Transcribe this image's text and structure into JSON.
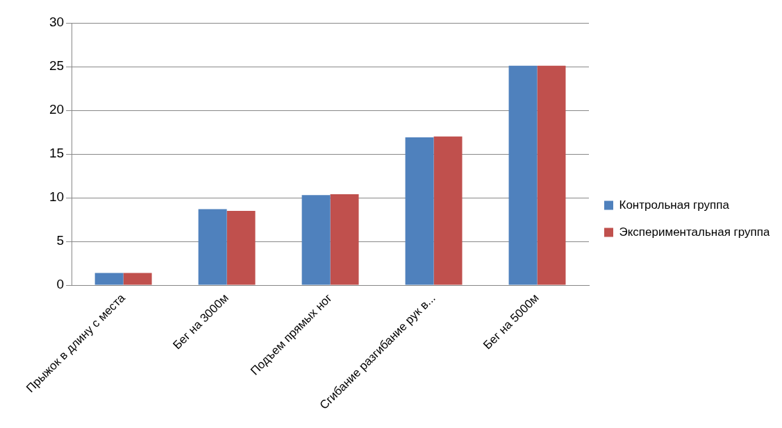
{
  "chart_data": {
    "type": "bar",
    "categories": [
      "Прыжок в длину с места",
      "Бег на 3000м",
      "Подъем прямых ног",
      "Сгибание разгибание рук в...",
      "Бег на 5000м"
    ],
    "series": [
      {
        "name": "Контрольная группа",
        "color": "#4f81bd",
        "values": [
          1.4,
          8.7,
          10.3,
          16.9,
          25.1
        ]
      },
      {
        "name": "Экспериментальная группа",
        "color": "#c0504d",
        "values": [
          1.4,
          8.5,
          10.4,
          17.0,
          25.1
        ]
      }
    ],
    "ylim": [
      0,
      30
    ],
    "yticks": [
      0,
      5,
      10,
      15,
      20,
      25,
      30
    ],
    "grid": "y",
    "legend": "right"
  }
}
